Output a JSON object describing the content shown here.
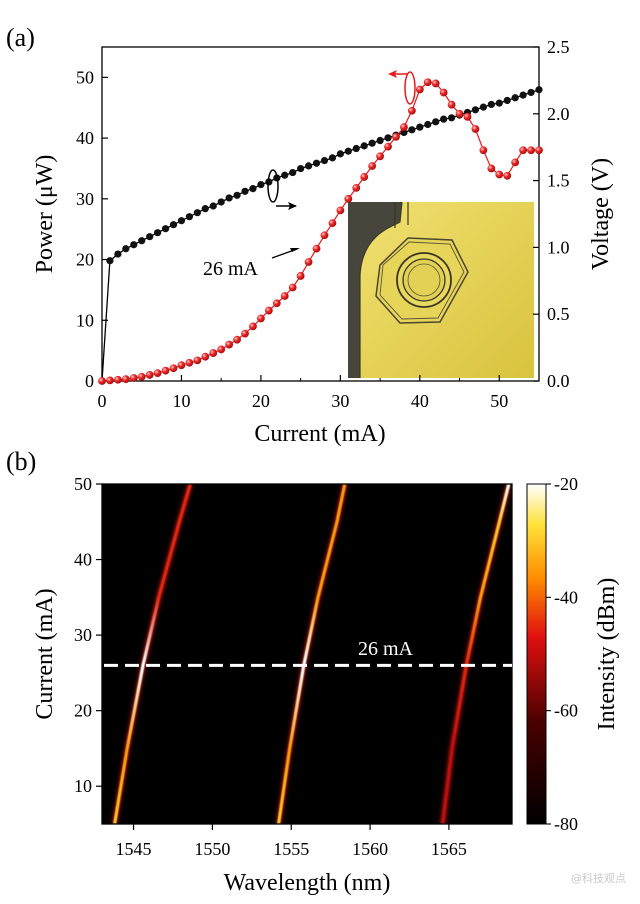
{
  "figure": {
    "watermark": "@科技观点"
  },
  "colors": {
    "power_series": "#e8191b",
    "voltage_series": "#111111",
    "dash_line": "#ffffff",
    "gold_bg": "#e4d24d"
  },
  "chart_data": [
    {
      "panel": "(a)",
      "type": "line",
      "xlabel": "Current (mA)",
      "ylabel_left": "Power (μW)",
      "ylabel_right": "Voltage (V)",
      "xlim": [
        0,
        55
      ],
      "ylim_left": [
        0,
        55
      ],
      "ylim_right": [
        0,
        2.5
      ],
      "x_ticks": [
        0,
        10,
        20,
        30,
        40,
        50
      ],
      "y_ticks_left": [
        0,
        10,
        20,
        30,
        40,
        50
      ],
      "y_ticks_right": [
        "0.0",
        "0.5",
        "1.0",
        "1.5",
        "2.0",
        "2.5"
      ],
      "annotation": "26 mA",
      "inset": "microscope image of ring resonator device",
      "series": [
        {
          "axis": "left",
          "color": "#e8191b",
          "x": [
            0,
            1,
            2,
            3,
            4,
            5,
            6,
            7,
            8,
            9,
            10,
            11,
            12,
            13,
            14,
            15,
            16,
            17,
            18,
            19,
            20,
            21,
            22,
            23,
            24,
            25,
            26,
            27,
            28,
            29,
            30,
            31,
            32,
            33,
            34,
            35,
            36,
            37,
            38,
            39,
            40,
            41,
            42,
            43,
            44,
            45,
            46,
            47,
            48,
            49,
            50,
            51,
            52,
            53,
            54,
            55
          ],
          "values": [
            0,
            0.1,
            0.2,
            0.3,
            0.5,
            0.7,
            1.0,
            1.3,
            1.7,
            2.1,
            2.6,
            3.0,
            3.4,
            4.0,
            4.6,
            5.2,
            6.0,
            6.8,
            7.8,
            9.0,
            10.3,
            11.6,
            12.8,
            14.0,
            15.4,
            17.3,
            19.6,
            21.8,
            24.0,
            26.0,
            28.1,
            30.0,
            31.8,
            33.6,
            35.4,
            37.0,
            38.6,
            40.2,
            41.8,
            44.5,
            48.0,
            49.2,
            49.0,
            47.5,
            45.5,
            44.0,
            43.5,
            41.5,
            38.0,
            35.0,
            34.0,
            33.8,
            36.0,
            38.0,
            38.0,
            38.0
          ]
        },
        {
          "axis": "right",
          "color": "#111111",
          "x": [
            0,
            1,
            2,
            3,
            4,
            5,
            6,
            7,
            8,
            9,
            10,
            11,
            12,
            13,
            14,
            15,
            16,
            17,
            18,
            19,
            20,
            21,
            22,
            23,
            24,
            25,
            26,
            27,
            28,
            29,
            30,
            31,
            32,
            33,
            34,
            35,
            36,
            37,
            38,
            39,
            40,
            41,
            42,
            43,
            44,
            45,
            46,
            47,
            48,
            49,
            50,
            51,
            52,
            53,
            54,
            55
          ],
          "values": [
            0,
            0.9,
            0.95,
            0.99,
            1.02,
            1.05,
            1.08,
            1.11,
            1.14,
            1.17,
            1.2,
            1.23,
            1.26,
            1.29,
            1.31,
            1.34,
            1.37,
            1.39,
            1.42,
            1.44,
            1.47,
            1.49,
            1.52,
            1.54,
            1.56,
            1.59,
            1.61,
            1.63,
            1.65,
            1.67,
            1.7,
            1.72,
            1.74,
            1.76,
            1.78,
            1.8,
            1.82,
            1.84,
            1.86,
            1.88,
            1.9,
            1.92,
            1.94,
            1.96,
            1.97,
            1.99,
            2.01,
            2.03,
            2.05,
            2.07,
            2.08,
            2.1,
            2.12,
            2.14,
            2.16,
            2.18
          ]
        }
      ]
    },
    {
      "panel": "(b)",
      "type": "heatmap",
      "xlabel": "Wavelength (nm)",
      "ylabel": "Current (mA)",
      "colorbar_label": "Intensity (dBm)",
      "xlim": [
        1543,
        1569
      ],
      "ylim": [
        5,
        50
      ],
      "clim": [
        -80,
        -20
      ],
      "x_ticks": [
        1545,
        1550,
        1555,
        1560,
        1565
      ],
      "y_ticks": [
        10,
        20,
        30,
        40,
        50
      ],
      "colorbar_ticks": [
        -20,
        -40,
        -60,
        -80
      ],
      "annotation": "26 mA",
      "mode_lines": [
        {
          "currents": [
            5,
            15,
            26,
            35,
            45,
            50
          ],
          "wavelengths": [
            1543.8,
            1544.6,
            1545.6,
            1546.6,
            1547.9,
            1548.6
          ],
          "peak_dBm": [
            -30,
            -35,
            -20,
            -45,
            -45,
            -45
          ]
        },
        {
          "currents": [
            5,
            15,
            26,
            35,
            45,
            50
          ],
          "wavelengths": [
            1554.2,
            1554.9,
            1555.8,
            1556.7,
            1557.9,
            1558.4
          ],
          "peak_dBm": [
            -30,
            -35,
            -20,
            -35,
            -35,
            -35
          ]
        },
        {
          "currents": [
            5,
            15,
            26,
            35,
            45,
            50
          ],
          "wavelengths": [
            1564.6,
            1565.2,
            1566.1,
            1567.0,
            1568.2,
            1568.8
          ],
          "peak_dBm": [
            -50,
            -50,
            -45,
            -35,
            -30,
            -20
          ]
        }
      ]
    }
  ]
}
